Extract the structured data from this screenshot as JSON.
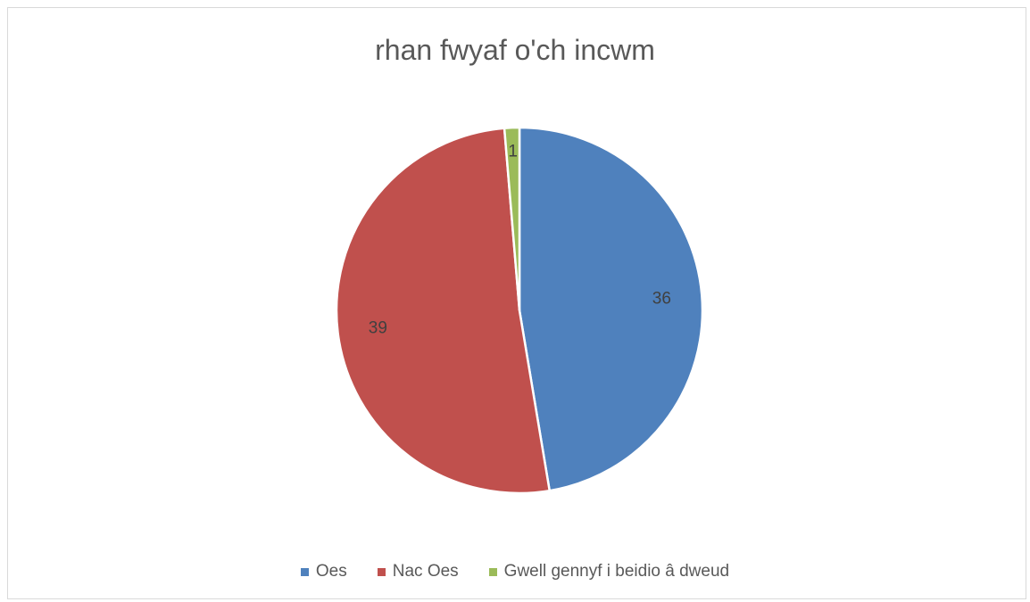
{
  "chart_data": {
    "type": "pie",
    "title": "rhan fwyaf o'ch incwm",
    "categories": [
      "Oes",
      "Nac Oes",
      "Gwell gennyf i beidio â dweud"
    ],
    "values": [
      36,
      39,
      1
    ],
    "data_labels": [
      "36",
      "39",
      "1"
    ],
    "colors": [
      "#4f81bd",
      "#c0504d",
      "#9bbb59"
    ],
    "legend_position": "bottom"
  }
}
